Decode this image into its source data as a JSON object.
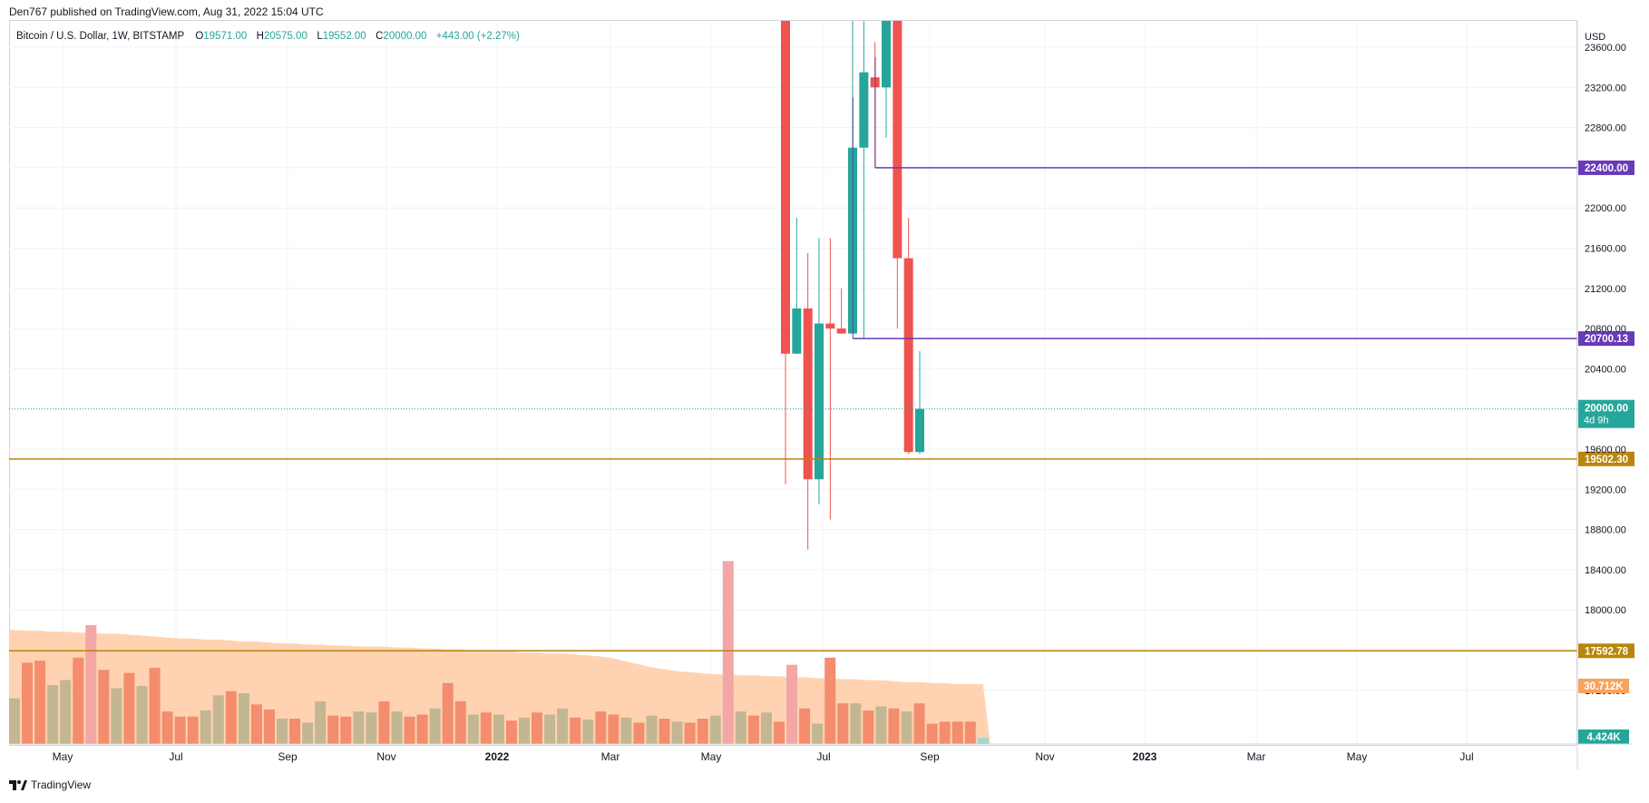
{
  "header": {
    "published_text": "Den767 published on TradingView.com, Aug 31, 2022 15:04 UTC"
  },
  "legend": {
    "symbol": "Bitcoin / U.S. Dollar, 1W, BITSTAMP",
    "o_key": "O",
    "o_val": "19571.00",
    "h_key": "H",
    "h_val": "20575.00",
    "l_key": "L",
    "l_val": "19552.00",
    "c_key": "C",
    "c_val": "20000.00",
    "change": "+443.00 (+2.27%)"
  },
  "footer": {
    "brand": "TradingView"
  },
  "colors": {
    "up": "#26a69a",
    "down": "#ef5350",
    "vol_up": "#c2b792",
    "vol_down": "#f38d6d",
    "vol_ma": "#ffcba4",
    "vol_spike": "#f4a6a6",
    "purple": "#673ab7",
    "gold": "#b8860b",
    "grid": "#f0f3fa"
  },
  "chart_data": {
    "type": "candlestick",
    "currency": "USD",
    "ylim": [
      16600,
      23900
    ],
    "y_ticks": [
      "17200.00",
      "18000.00",
      "18400.00",
      "18800.00",
      "19200.00",
      "19600.00",
      "20400.00",
      "20800.00",
      "21200.00",
      "21600.00",
      "22000.00",
      "22800.00",
      "23200.00",
      "23600.00"
    ],
    "x_ticks": [
      "May",
      "Jul",
      "Sep",
      "Nov",
      "2022",
      "Mar",
      "May",
      "Jul",
      "Sep",
      "Nov",
      "2023",
      "Mar",
      "May",
      "Jul"
    ],
    "candles": [
      {
        "date": "2022-06-06",
        "open": 30000,
        "high": 31500,
        "low": 19250,
        "close": 20550
      },
      {
        "date": "2022-06-13",
        "open": 20550,
        "high": 21900,
        "low": 20550,
        "close": 21000
      },
      {
        "date": "2022-06-20",
        "open": 21000,
        "high": 21550,
        "low": 18600,
        "close": 19300
      },
      {
        "date": "2022-06-27",
        "open": 19300,
        "high": 21700,
        "low": 19050,
        "close": 20850
      },
      {
        "date": "2022-07-04",
        "open": 20850,
        "high": 21700,
        "low": 18900,
        "close": 20800
      },
      {
        "date": "2022-07-11",
        "open": 20800,
        "high": 21200,
        "low": 20750,
        "close": 20750
      },
      {
        "date": "2022-07-18",
        "open": 20750,
        "high": 24200,
        "low": 20750,
        "close": 22600
      },
      {
        "date": "2022-07-25",
        "open": 22600,
        "high": 24500,
        "low": 20700,
        "close": 23350
      },
      {
        "date": "2022-08-01",
        "open": 23300,
        "high": 23650,
        "low": 22400,
        "close": 23200
      },
      {
        "date": "2022-08-08",
        "open": 23200,
        "high": 25200,
        "low": 22700,
        "close": 24400
      },
      {
        "date": "2022-08-15",
        "open": 24400,
        "high": 25200,
        "low": 20800,
        "close": 21500
      },
      {
        "date": "2022-08-22",
        "open": 21500,
        "high": 21900,
        "low": 19550,
        "close": 19571
      },
      {
        "date": "2022-08-29",
        "open": 19571,
        "high": 20575,
        "low": 19552,
        "close": 20000
      }
    ],
    "horizontal_lines": [
      {
        "label": "22400.00",
        "value": 22400.0,
        "color": "#673ab7",
        "start": "2022-08-08"
      },
      {
        "label": "20700.13",
        "value": 20700.13,
        "color": "#673ab7",
        "start": "2022-07-25"
      },
      {
        "label": "19502.30",
        "value": 19502.3,
        "color": "#b8860b",
        "start": "full"
      },
      {
        "label": "17592.78",
        "value": 17592.78,
        "color": "#b8860b",
        "start": "full"
      }
    ],
    "last_price": {
      "label": "20000.00",
      "countdown": "4d 9h",
      "value": 20000.0
    },
    "volume": {
      "ma_label": "30.712K",
      "last_label": "4.424K",
      "bars": [
        45,
        80,
        82,
        58,
        63,
        85,
        117,
        73,
        55,
        70,
        57,
        75,
        32,
        27,
        27,
        33,
        48,
        52,
        50,
        39,
        34,
        25,
        25,
        21,
        42,
        28,
        27,
        32,
        31,
        42,
        32,
        27,
        29,
        35,
        60,
        42,
        29,
        31,
        29,
        23,
        26,
        31,
        29,
        35,
        26,
        24,
        32,
        29,
        26,
        21,
        28,
        25,
        22,
        21,
        25,
        28,
        180,
        32,
        28,
        31,
        22,
        78,
        35,
        20,
        85,
        40,
        40,
        33,
        37,
        35,
        32,
        40,
        20,
        22,
        22,
        22,
        6
      ],
      "bar_up": [
        true,
        false,
        false,
        true,
        true,
        false,
        false,
        false,
        true,
        false,
        true,
        false,
        false,
        false,
        false,
        true,
        true,
        false,
        true,
        false,
        false,
        true,
        false,
        true,
        true,
        false,
        false,
        true,
        true,
        false,
        true,
        false,
        false,
        true,
        false,
        false,
        true,
        false,
        true,
        false,
        true,
        false,
        true,
        true,
        false,
        true,
        false,
        false,
        true,
        false,
        true,
        false,
        true,
        false,
        false,
        true,
        false,
        true,
        false,
        true,
        false,
        true,
        false,
        true,
        false,
        false,
        true,
        false,
        true,
        false,
        true,
        false,
        false,
        false,
        false,
        false,
        true
      ],
      "ma_ratio": [
        1.0,
        0.99,
        0.99,
        0.98,
        0.98,
        0.97,
        0.97,
        0.96,
        0.96,
        0.95,
        0.94,
        0.93,
        0.92,
        0.91,
        0.91,
        0.9,
        0.9,
        0.89,
        0.88,
        0.88,
        0.87,
        0.86,
        0.86,
        0.85,
        0.85,
        0.84,
        0.84,
        0.83,
        0.83,
        0.83,
        0.82,
        0.82,
        0.81,
        0.81,
        0.8,
        0.8,
        0.79,
        0.79,
        0.78,
        0.78,
        0.77,
        0.77,
        0.76,
        0.76,
        0.75,
        0.74,
        0.73,
        0.71,
        0.68,
        0.65,
        0.62,
        0.6,
        0.58,
        0.57,
        0.56,
        0.55,
        0.55,
        0.54,
        0.54,
        0.53,
        0.53,
        0.52,
        0.52,
        0.51,
        0.51,
        0.5,
        0.5,
        0.49,
        0.49,
        0.48,
        0.47,
        0.47,
        0.46,
        0.46,
        0.45,
        0.45,
        0.45
      ]
    },
    "grid": true
  }
}
